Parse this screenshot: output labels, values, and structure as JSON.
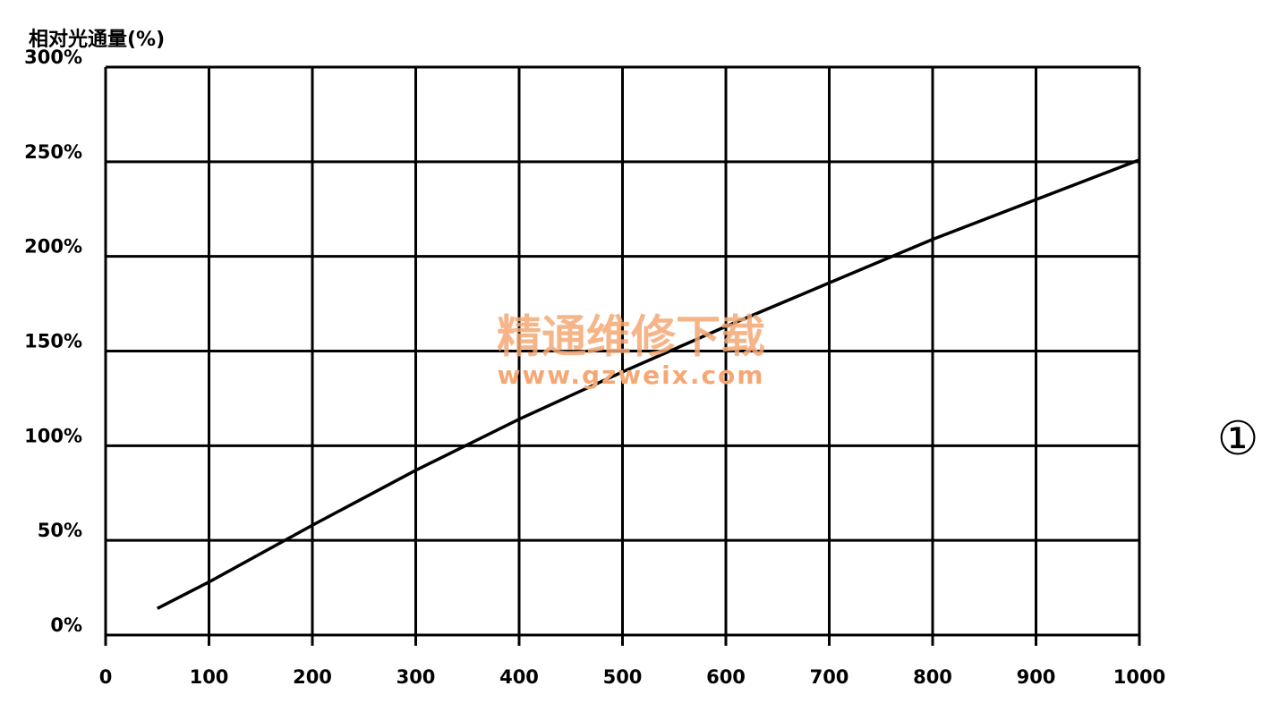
{
  "chart_data": {
    "type": "line",
    "y_axis_label": "相对光通量(%)",
    "x": [
      50,
      100,
      200,
      300,
      400,
      500,
      600,
      700,
      800,
      900,
      1000
    ],
    "series": [
      {
        "color": "#000000",
        "values": [
          14,
          28,
          58,
          87,
          114,
          139,
          163,
          186,
          209,
          230,
          251
        ]
      }
    ],
    "xlim": [
      0,
      1000
    ],
    "xticks": [
      0,
      100,
      200,
      300,
      400,
      500,
      600,
      700,
      800,
      900,
      1000
    ],
    "ylim": [
      0,
      300
    ],
    "yticks": [
      {
        "value": 0,
        "label": "0%"
      },
      {
        "value": 50,
        "label": "50%"
      },
      {
        "value": 100,
        "label": "100%"
      },
      {
        "value": 150,
        "label": "150%"
      },
      {
        "value": 200,
        "label": "200%"
      },
      {
        "value": 250,
        "label": "250%"
      },
      {
        "value": 300,
        "label": "300%"
      }
    ],
    "grid": true,
    "annotations": [
      "精通维修下载",
      "www.gzweix.com",
      "①"
    ]
  }
}
